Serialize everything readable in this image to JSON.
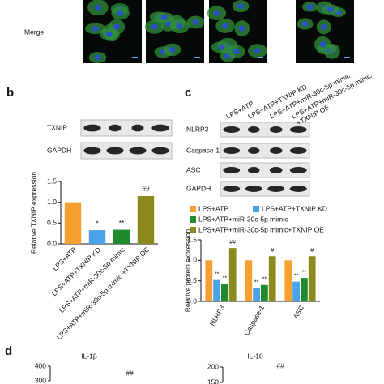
{
  "merge_label": "Merge",
  "panel_labels": [
    "b",
    "c",
    "d"
  ],
  "blot_b": {
    "rows": [
      "TXNIP",
      "GAPDH"
    ]
  },
  "blot_c": {
    "columns": [
      [
        "LPS+ATP"
      ],
      [
        "LPS+ATP+TXNIP KD"
      ],
      [
        "LPS+ATP+miR-30c-5p mimic"
      ],
      [
        "LPS+ATP+miR-30c-5p mimic",
        "+TXNIP OE"
      ]
    ],
    "rows": [
      "NLRP3",
      "Caspase-1",
      "ASC",
      "GAPDH"
    ]
  },
  "chart_data": [
    {
      "type": "bar",
      "ylabel": "Relative TXNIP expression",
      "categories": [
        "LPS+ATP",
        "LPS+ATP+TXNIP KD",
        "LPS+ATP+miR-30c-5p mimic",
        "LPS+ATP+miR-30c-5p mimic +TXNIP OE"
      ],
      "values": [
        1.0,
        0.33,
        0.34,
        1.15
      ],
      "colors": [
        "#f5a031",
        "#4aa3e8",
        "#1f8a2e",
        "#8a8a1e"
      ],
      "annotations": [
        null,
        "*",
        "**",
        "##"
      ],
      "ylim": [
        0,
        1.5
      ],
      "yticks": [
        {
          "value": 0,
          "label": "0.0"
        },
        {
          "value": 0.5,
          "label": "0.5"
        },
        {
          "value": 1,
          "label": "1.0"
        },
        {
          "value": 1.5,
          "label": "1.5"
        }
      ]
    },
    {
      "type": "grouped-bar",
      "ylabel": "Relative protein expression",
      "categories": [
        "NLRP3",
        "Caspase-1",
        "ASC"
      ],
      "series": [
        {
          "name": "LPS+ATP",
          "color": "#f5a031",
          "values": [
            1.0,
            1.0,
            1.0
          ],
          "annotations": [
            null,
            null,
            null
          ]
        },
        {
          "name": "LPS+ATP+TXNIP KD",
          "color": "#4aa3e8",
          "values": [
            0.52,
            0.32,
            0.48
          ],
          "annotations": [
            "**",
            "**",
            "**"
          ]
        },
        {
          "name": "LPS+ATP+miR-30c-5p mimic",
          "color": "#1f8a2e",
          "values": [
            0.42,
            0.4,
            0.57
          ],
          "annotations": [
            "**",
            "**",
            "**"
          ]
        },
        {
          "name": "LPS+ATP+miR-30c-5p mimic+TXNIP OE",
          "color": "#8a8a1e",
          "values": [
            1.3,
            1.1,
            1.1
          ],
          "annotations": [
            "##",
            "#",
            "#"
          ]
        }
      ],
      "ylim": [
        0,
        1.5
      ],
      "yticks": [
        {
          "value": 0,
          "label": "0.0"
        },
        {
          "value": 0.5,
          "label": "0.5"
        },
        {
          "value": 1,
          "label": "1.0"
        },
        {
          "value": 1.5,
          "label": "1.5"
        }
      ]
    },
    {
      "type": "partial",
      "title": "IL-1β",
      "ylim": [
        300,
        400
      ],
      "yticks": [
        300,
        400
      ],
      "annotations": [
        "##"
      ]
    },
    {
      "type": "partial",
      "title": "IL-18",
      "ylim": [
        150,
        200
      ],
      "yticks": [
        150,
        200
      ],
      "annotations": [
        "##"
      ]
    }
  ]
}
